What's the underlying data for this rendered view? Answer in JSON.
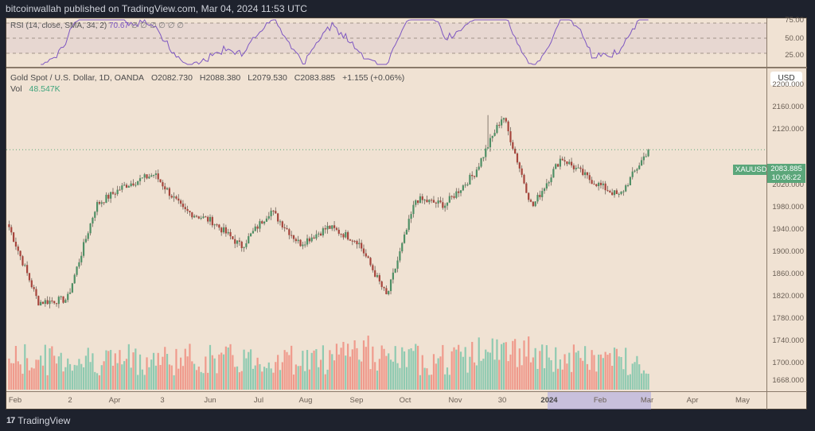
{
  "header": {
    "published_text": "bitcoinwallah published on TradingView.com, Mar 04, 2024 11:53 UTC"
  },
  "rsi_pane": {
    "legend_label": "RSI (14, close, SMA, 34, 2)",
    "legend_value": "70.67",
    "legend_placeholders": "∅ ∅ ∅ ∅ ∅ ∅",
    "axis_labels": [
      "75.00",
      "50.00",
      "25.00"
    ],
    "line_color": "#7e57c2"
  },
  "main_pane": {
    "title": "Gold Spot / U.S. Dollar, 1D, OANDA",
    "open": "O2082.730",
    "high": "H2088.380",
    "low": "L2079.530",
    "close": "C2083.885",
    "change": "+1.155 (+0.06%)",
    "vol_label": "Vol",
    "vol_value": "48.547K",
    "currency_button": "USD",
    "symbol_tag": "XAUUSD",
    "last_price": "2083.885",
    "countdown": "10:06:22",
    "price_axis_labels": [
      "2200.000",
      "2160.000",
      "2120.000",
      "2020.000",
      "1980.000",
      "1940.000",
      "1900.000",
      "1860.000",
      "1820.000",
      "1780.000",
      "1740.000",
      "1700.000",
      "1668.000"
    ]
  },
  "time_axis": {
    "labels": [
      {
        "text": "Feb",
        "x": 11
      },
      {
        "text": "2",
        "x": 80
      },
      {
        "text": "Apr",
        "x": 136
      },
      {
        "text": "3",
        "x": 196
      },
      {
        "text": "Jun",
        "x": 256
      },
      {
        "text": "Jul",
        "x": 317
      },
      {
        "text": "Aug",
        "x": 376
      },
      {
        "text": "Sep",
        "x": 440
      },
      {
        "text": "Oct",
        "x": 501
      },
      {
        "text": "Nov",
        "x": 564
      },
      {
        "text": "30",
        "x": 623
      },
      {
        "text": "2024",
        "x": 682,
        "bold": true
      },
      {
        "text": "Feb",
        "x": 746
      },
      {
        "text": "Mar",
        "x": 805
      },
      {
        "text": "Apr",
        "x": 862
      },
      {
        "text": "May",
        "x": 925
      }
    ]
  },
  "footer": {
    "brand": "TradingView"
  },
  "colors": {
    "up": "#4f8f65",
    "down": "#a6453c",
    "vol_up": "#8fcab1",
    "vol_down": "#ef9a8c",
    "background": "#f0e2d3",
    "frame": "#1e222d",
    "tag": "#5ba67a"
  },
  "chart_data": {
    "type": "candlestick",
    "title": "Gold Spot / U.S. Dollar, 1D, OANDA",
    "symbol": "XAUUSD",
    "last": {
      "open": 2082.73,
      "high": 2088.38,
      "low": 2079.53,
      "close": 2083.885,
      "change": 1.155,
      "change_pct": 0.06,
      "volume": "48.547K"
    },
    "ylim": [
      1650,
      2230
    ],
    "y_ticks": [
      2200,
      2160,
      2120,
      2020,
      1980,
      1940,
      1900,
      1860,
      1820,
      1780,
      1740,
      1700,
      1668
    ],
    "x_ticks": [
      "Feb",
      "2",
      "Apr",
      "3",
      "Jun",
      "Jul",
      "Aug",
      "Sep",
      "Oct",
      "Nov",
      "30",
      "2024",
      "Feb",
      "Mar",
      "Apr",
      "May"
    ],
    "close_path_approx": [
      {
        "label": "early Feb 2023",
        "value": 1945
      },
      {
        "label": "late Feb 2023",
        "value": 1810
      },
      {
        "label": "early Mar 2023",
        "value": 1815
      },
      {
        "label": "mid Mar 2023",
        "value": 1985
      },
      {
        "label": "early Apr 2023",
        "value": 2020
      },
      {
        "label": "early May 2023",
        "value": 2040
      },
      {
        "label": "mid May 2023",
        "value": 1975
      },
      {
        "label": "Jun 2023",
        "value": 1955
      },
      {
        "label": "late Jun 2023",
        "value": 1910
      },
      {
        "label": "mid Jul 2023",
        "value": 1975
      },
      {
        "label": "Aug 2023",
        "value": 1915
      },
      {
        "label": "late Aug 2023",
        "value": 1945
      },
      {
        "label": "Sep 2023",
        "value": 1920
      },
      {
        "label": "early Oct 2023",
        "value": 1820
      },
      {
        "label": "late Oct 2023",
        "value": 1995
      },
      {
        "label": "Nov 2023",
        "value": 1985
      },
      {
        "label": "late Nov 2023",
        "value": 2040
      },
      {
        "label": "Dec 4 2023 spike high",
        "value": 2146
      },
      {
        "label": "mid Dec 2023",
        "value": 1980
      },
      {
        "label": "late Dec 2023",
        "value": 2070
      },
      {
        "label": "Jan 2024",
        "value": 2030
      },
      {
        "label": "Feb 2024",
        "value": 2000
      },
      {
        "label": "Mar 04 2024",
        "value": 2083.885
      }
    ],
    "rsi": {
      "params": "14, close, SMA, 34, 2",
      "last": 70.67,
      "levels": [
        70,
        50,
        30
      ],
      "axis": [
        75,
        50,
        25
      ]
    },
    "volume": {
      "last": "48.547K"
    }
  }
}
